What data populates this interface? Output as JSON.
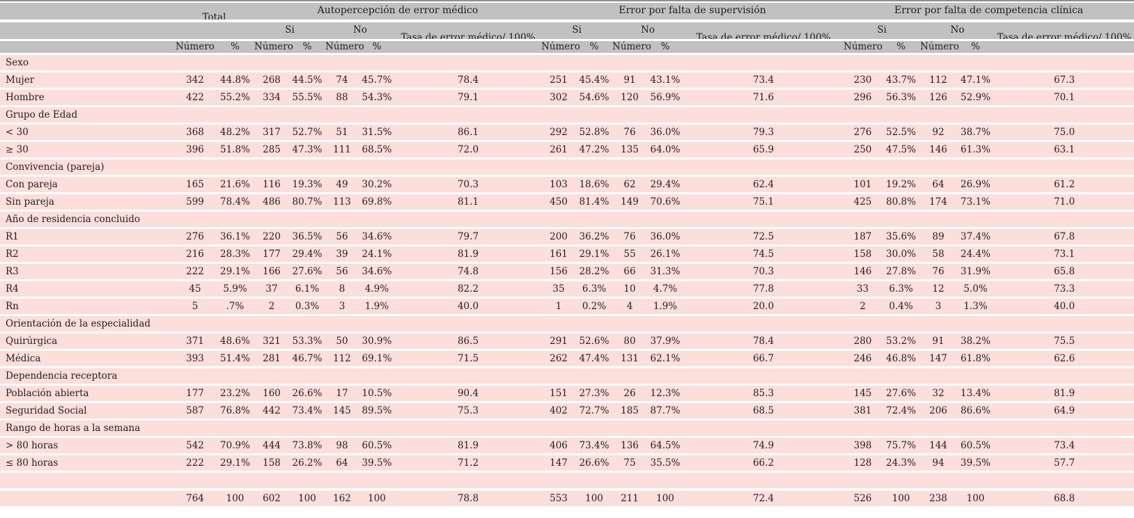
{
  "colors": {
    "header_bg": "#c2c1c1",
    "row_bg": "#fcdedb",
    "top_rule": "#8f8f8f",
    "text": "#1e1e1e"
  },
  "header": {
    "total": "Total",
    "numero": "Número",
    "percent": "%",
    "groups": [
      {
        "title": "Autopercepción de error médico",
        "si": "Si",
        "no": "No",
        "tasa": "Tasa de error médico/ 100%"
      },
      {
        "title": "Error por falta de supervisión",
        "si": "Si",
        "no": "No",
        "tasa": "Tasa de error médico/ 100%"
      },
      {
        "title": "Error por falta de competencia clínica",
        "si": "Si",
        "no": "No",
        "tasa": "Tasa de error médico/ 100%"
      }
    ]
  },
  "rows": [
    {
      "type": "section",
      "label": "Sexo"
    },
    {
      "type": "data",
      "label": "Mujer",
      "values": [
        "342",
        "44.8%",
        "268",
        "44.5%",
        "74",
        "45.7%",
        "78.4",
        "251",
        "45.4%",
        "91",
        "43.1%",
        "73.4",
        "230",
        "43.7%",
        "112",
        "47.1%",
        "67.3"
      ]
    },
    {
      "type": "data",
      "label": "Hombre",
      "values": [
        "422",
        "55.2%",
        "334",
        "55.5%",
        "88",
        "54.3%",
        "79.1",
        "302",
        "54.6%",
        "120",
        "56.9%",
        "71.6",
        "296",
        "56.3%",
        "126",
        "52.9%",
        "70.1"
      ]
    },
    {
      "type": "section",
      "label": "Grupo de Edad"
    },
    {
      "type": "data",
      "label": "< 30",
      "values": [
        "368",
        "48.2%",
        "317",
        "52.7%",
        "51",
        "31.5%",
        "86.1",
        "292",
        "52.8%",
        "76",
        "36.0%",
        "79.3",
        "276",
        "52.5%",
        "92",
        "38.7%",
        "75.0"
      ]
    },
    {
      "type": "data",
      "label": "≥ 30",
      "values": [
        "396",
        "51.8%",
        "285",
        "47.3%",
        "111",
        "68.5%",
        "72.0",
        "261",
        "47.2%",
        "135",
        "64.0%",
        "65.9",
        "250",
        "47.5%",
        "146",
        "61.3%",
        "63.1"
      ]
    },
    {
      "type": "section",
      "label": "Convivencia (pareja)"
    },
    {
      "type": "data",
      "label": "Con pareja",
      "values": [
        "165",
        "21.6%",
        "116",
        "19.3%",
        "49",
        "30.2%",
        "70.3",
        "103",
        "18.6%",
        "62",
        "29.4%",
        "62.4",
        "101",
        "19.2%",
        "64",
        "26.9%",
        "61.2"
      ]
    },
    {
      "type": "data",
      "label": "Sin pareja",
      "values": [
        "599",
        "78.4%",
        "486",
        "80.7%",
        "113",
        "69.8%",
        "81.1",
        "450",
        "81.4%",
        "149",
        "70.6%",
        "75.1",
        "425",
        "80.8%",
        "174",
        "73.1%",
        "71.0"
      ]
    },
    {
      "type": "section",
      "label": "Año de residencia concluido"
    },
    {
      "type": "data",
      "label": "R1",
      "values": [
        "276",
        "36.1%",
        "220",
        "36.5%",
        "56",
        "34.6%",
        "79.7",
        "200",
        "36.2%",
        "76",
        "36.0%",
        "72.5",
        "187",
        "35.6%",
        "89",
        "37.4%",
        "67.8"
      ]
    },
    {
      "type": "data",
      "label": "R2",
      "values": [
        "216",
        "28.3%",
        "177",
        "29.4%",
        "39",
        "24.1%",
        "81.9",
        "161",
        "29.1%",
        "55",
        "26.1%",
        "74.5",
        "158",
        "30.0%",
        "58",
        "24.4%",
        "73.1"
      ]
    },
    {
      "type": "data",
      "label": "R3",
      "values": [
        "222",
        "29.1%",
        "166",
        "27.6%",
        "56",
        "34.6%",
        "74.8",
        "156",
        "28.2%",
        "66",
        "31.3%",
        "70.3",
        "146",
        "27.8%",
        "76",
        "31.9%",
        "65.8"
      ]
    },
    {
      "type": "data",
      "label": "R4",
      "values": [
        "45",
        "5.9%",
        "37",
        "6.1%",
        "8",
        "4.9%",
        "82.2",
        "35",
        "6.3%",
        "10",
        "4.7%",
        "77.8",
        "33",
        "6.3%",
        "12",
        "5.0%",
        "73.3"
      ]
    },
    {
      "type": "data",
      "label": "Rn",
      "values": [
        "5",
        ".7%",
        "2",
        "0.3%",
        "3",
        "1.9%",
        "40.0",
        "1",
        "0.2%",
        "4",
        "1.9%",
        "20.0",
        "2",
        "0.4%",
        "3",
        "1.3%",
        "40.0"
      ]
    },
    {
      "type": "section",
      "label": "Orientación de la especialidad"
    },
    {
      "type": "data",
      "label": "Quirúrgica",
      "values": [
        "371",
        "48.6%",
        "321",
        "53.3%",
        "50",
        "30.9%",
        "86.5",
        "291",
        "52.6%",
        "80",
        "37.9%",
        "78.4",
        "280",
        "53.2%",
        "91",
        "38.2%",
        "75.5"
      ]
    },
    {
      "type": "data",
      "label": "Médica",
      "values": [
        "393",
        "51.4%",
        "281",
        "46.7%",
        "112",
        "69.1%",
        "71.5",
        "262",
        "47.4%",
        "131",
        "62.1%",
        "66.7",
        "246",
        "46.8%",
        "147",
        "61.8%",
        "62.6"
      ]
    },
    {
      "type": "section",
      "label": "Dependencia receptora"
    },
    {
      "type": "data",
      "label": "Población abierta",
      "values": [
        "177",
        "23.2%",
        "160",
        "26.6%",
        "17",
        "10.5%",
        "90.4",
        "151",
        "27.3%",
        "26",
        "12.3%",
        "85.3",
        "145",
        "27.6%",
        "32",
        "13.4%",
        "81.9"
      ]
    },
    {
      "type": "data",
      "label": "Seguridad Social",
      "values": [
        "587",
        "76.8%",
        "442",
        "73.4%",
        "145",
        "89.5%",
        "75.3",
        "402",
        "72.7%",
        "185",
        "87.7%",
        "68.5",
        "381",
        "72.4%",
        "206",
        "86.6%",
        "64.9"
      ]
    },
    {
      "type": "section",
      "label": "Rango de horas a la semana"
    },
    {
      "type": "data",
      "label": "> 80 horas",
      "values": [
        "542",
        "70.9%",
        "444",
        "73.8%",
        "98",
        "60.5%",
        "81.9",
        "406",
        "73.4%",
        "136",
        "64.5%",
        "74.9",
        "398",
        "75.7%",
        "144",
        "60.5%",
        "73.4"
      ]
    },
    {
      "type": "data",
      "label": "≤ 80 horas",
      "values": [
        "222",
        "29.1%",
        "158",
        "26.2%",
        "64",
        "39.5%",
        "71.2",
        "147",
        "26.6%",
        "75",
        "35.5%",
        "66.2",
        "128",
        "24.3%",
        "94",
        "39.5%",
        "57.7"
      ]
    },
    {
      "type": "empty",
      "label": ""
    },
    {
      "type": "total",
      "label": "",
      "values": [
        "764",
        "100",
        "602",
        "100",
        "162",
        "100",
        "78.8",
        "553",
        "100",
        "211",
        "100",
        "72.4",
        "526",
        "100",
        "238",
        "100",
        "68.8"
      ]
    }
  ]
}
